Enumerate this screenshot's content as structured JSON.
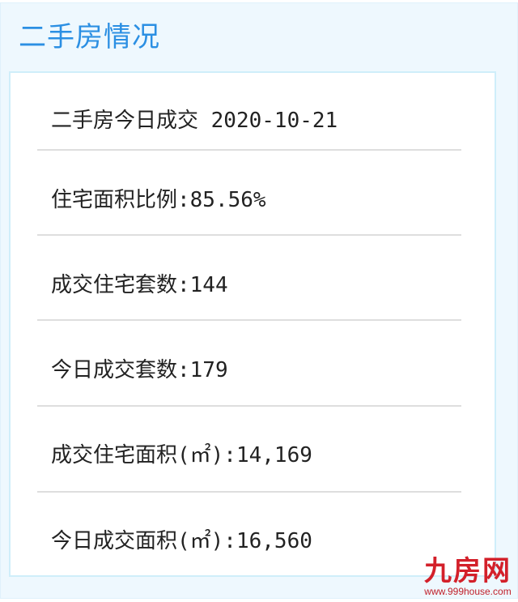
{
  "header": {
    "title": "二手房情况"
  },
  "rows": [
    {
      "text": "二手房今日成交 2020-10-21"
    },
    {
      "text": "住宅面积比例:85.56%"
    },
    {
      "text": "成交住宅套数:144"
    },
    {
      "text": "今日成交套数:179"
    },
    {
      "text": "成交住宅面积(㎡):14,169"
    },
    {
      "text": "今日成交面积(㎡):16,560"
    }
  ],
  "watermark": {
    "name": "九房网",
    "url": "www.999house.com"
  },
  "colors": {
    "title": "#2b8fe3",
    "panel_bg": "#eef8fe",
    "box_border": "#cfeefa",
    "watermark": "#d3202a"
  }
}
